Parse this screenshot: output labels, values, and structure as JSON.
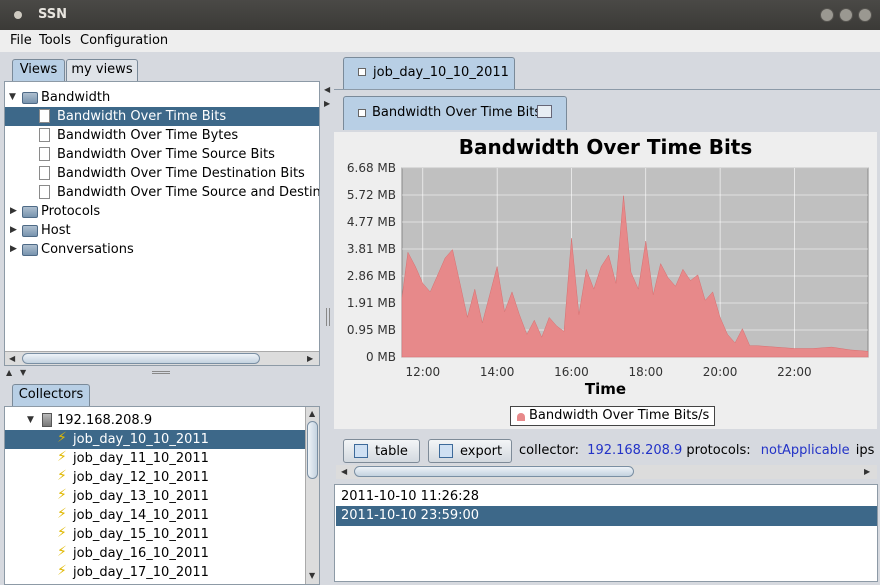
{
  "window": {
    "title": "SSN"
  },
  "menu": [
    "File",
    "Tools",
    "Configuration"
  ],
  "left_tabs": [
    "Views",
    "my views"
  ],
  "views_tree": [
    {
      "label": "Bandwidth",
      "type": "folder",
      "expanded": true
    },
    {
      "label": "Bandwidth Over Time Bits",
      "type": "doc",
      "selected": true
    },
    {
      "label": "Bandwidth Over Time Bytes",
      "type": "doc"
    },
    {
      "label": "Bandwidth Over Time Source Bits",
      "type": "doc"
    },
    {
      "label": "Bandwidth Over Time Destination Bits",
      "type": "doc"
    },
    {
      "label": "Bandwidth Over Time Source and Destinat",
      "type": "doc"
    },
    {
      "label": "Protocols",
      "type": "folder"
    },
    {
      "label": "Host",
      "type": "folder"
    },
    {
      "label": "Conversations",
      "type": "folder"
    }
  ],
  "collectors_tab": "Collectors",
  "collectors_tree": {
    "host": "192.168.208.9",
    "jobs": [
      "job_day_10_10_2011",
      "job_day_11_10_2011",
      "job_day_12_10_2011",
      "job_day_13_10_2011",
      "job_day_14_10_2011",
      "job_day_15_10_2011",
      "job_day_16_10_2011",
      "job_day_17_10_2011"
    ],
    "selected_index": 0
  },
  "job_tab": "job_day_10_10_2011",
  "view_tab": "Bandwidth Over Time Bits",
  "toolbar": {
    "table_label": "table",
    "export_label": "export",
    "collector_label": "collector:",
    "collector_value": "192.168.208.9",
    "protocols_label": "protocols:",
    "protocols_value": "notApplicable",
    "ips_label": "ips"
  },
  "timestamps": [
    "2011-10-10 11:26:28",
    "2011-10-10 23:59:00"
  ],
  "timestamps_selected_index": 1,
  "colors": {
    "selection": "#3d6889",
    "series": "#e7898a",
    "plot_bg": "#c0c0c0",
    "link": "#2333c7"
  },
  "chart_data": {
    "type": "area",
    "title": "Bandwidth Over Time Bits",
    "xlabel": "Time",
    "ylabel": "",
    "y_ticks": [
      "6.68 MB",
      "5.72 MB",
      "4.77 MB",
      "3.81 MB",
      "2.86 MB",
      "1.91 MB",
      "0.95 MB",
      "0 MB"
    ],
    "x_ticks": [
      "12:00",
      "14:00",
      "16:00",
      "18:00",
      "20:00",
      "22:00"
    ],
    "x_range_hours": [
      11.44,
      23.98
    ],
    "ylim": [
      0,
      6.68
    ],
    "legend": "Bandwidth Over Time Bits/s",
    "grid": true,
    "series": [
      {
        "name": "Bandwidth Over Time Bits/s",
        "x_hours": [
          11.44,
          11.6,
          11.8,
          12.0,
          12.2,
          12.4,
          12.6,
          12.8,
          13.0,
          13.2,
          13.4,
          13.6,
          13.8,
          14.0,
          14.2,
          14.4,
          14.6,
          14.8,
          15.0,
          15.2,
          15.4,
          15.6,
          15.8,
          16.0,
          16.2,
          16.4,
          16.6,
          16.8,
          17.0,
          17.2,
          17.4,
          17.6,
          17.8,
          18.0,
          18.2,
          18.4,
          18.6,
          18.8,
          19.0,
          19.2,
          19.4,
          19.6,
          19.8,
          20.0,
          20.2,
          20.4,
          20.6,
          20.8,
          21.0,
          21.5,
          22.0,
          22.5,
          23.0,
          23.5,
          23.98
        ],
        "values": [
          2.1,
          3.7,
          3.2,
          2.6,
          2.3,
          2.9,
          3.5,
          3.8,
          2.6,
          1.4,
          2.4,
          1.2,
          2.2,
          3.2,
          1.6,
          2.3,
          1.5,
          0.8,
          1.3,
          0.7,
          1.4,
          1.1,
          0.9,
          4.2,
          1.5,
          3.1,
          2.4,
          3.2,
          3.6,
          2.6,
          5.7,
          3.0,
          2.4,
          4.1,
          2.2,
          3.3,
          2.8,
          2.5,
          3.1,
          2.7,
          2.9,
          2.0,
          2.3,
          1.4,
          0.8,
          0.5,
          1.0,
          0.4,
          0.4,
          0.35,
          0.3,
          0.3,
          0.35,
          0.25,
          0.2
        ]
      }
    ]
  }
}
